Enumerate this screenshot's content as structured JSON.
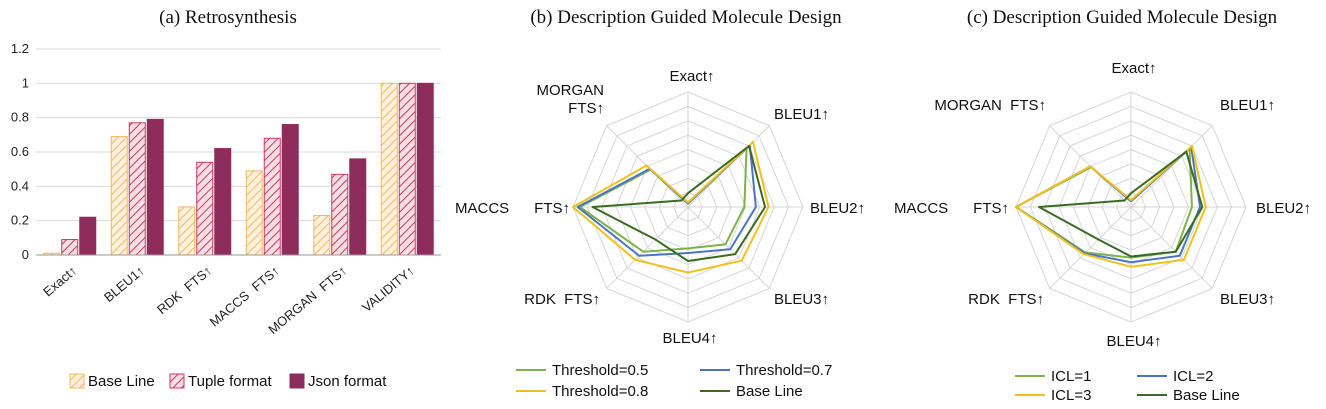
{
  "chart_data": [
    {
      "type": "bar",
      "title": "(a) Retrosynthesis",
      "categories": [
        "Exact↑",
        "BLEU1↑",
        "RDK FTS↑",
        "MACCS FTS↑",
        "MORGAN FTS↑",
        "VALIDITY↑"
      ],
      "ylim": [
        0,
        1.2
      ],
      "yticks": [
        "0",
        "0.2",
        "0.4",
        "0.6",
        "0.8",
        "1",
        "1.2"
      ],
      "legend_position": "bottom",
      "series": [
        {
          "name": "Base Line",
          "values": [
            0.01,
            0.69,
            0.28,
            0.49,
            0.23,
            1.0
          ],
          "color": "#f4b860",
          "fill": "#fdf0dc",
          "pattern": "hatch"
        },
        {
          "name": "Tuple format",
          "values": [
            0.09,
            0.77,
            0.54,
            0.68,
            0.47,
            1.0
          ],
          "color": "#c8395e",
          "fill": "#f7dde4",
          "pattern": "hatch"
        },
        {
          "name": "Json format",
          "values": [
            0.22,
            0.79,
            0.62,
            0.76,
            0.56,
            1.0
          ],
          "color": "#8e2c5c",
          "fill": "#8e2c5c",
          "pattern": "solid"
        }
      ]
    },
    {
      "type": "radar",
      "title": "(b) Description Guided Molecule Design",
      "axes": [
        "Exact↑",
        "BLEU1↑",
        "BLEU2↑",
        "BLEU3↑",
        "BLEU4↑",
        "RDK FTS↑",
        "MACCS FTS↑",
        "MORGAN FTS↑"
      ],
      "axis_label_lines": [
        [
          "Exact↑"
        ],
        [
          "BLEU1↑"
        ],
        [
          "BLEU2↑"
        ],
        [
          "BLEU3↑"
        ],
        [
          "BLEU4↑"
        ],
        [
          "RDK  FTS↑"
        ],
        [
          "MACCS      FTS↑"
        ],
        [
          "MORGAN",
          "FTS↑"
        ]
      ],
      "rlim": [
        0,
        1
      ],
      "grid": true,
      "legend_position": "bottom",
      "series": [
        {
          "name": "Threshold=0.5",
          "color": "#7db34a",
          "values": [
            0.03,
            0.72,
            0.49,
            0.46,
            0.36,
            0.55,
            0.94,
            0.46
          ]
        },
        {
          "name": "Threshold=0.7",
          "color": "#4a75c4",
          "values": [
            0.03,
            0.76,
            0.59,
            0.52,
            0.4,
            0.6,
            0.96,
            0.47
          ]
        },
        {
          "name": "Threshold=0.8",
          "color": "#f2c01e",
          "values": [
            0.04,
            0.8,
            0.7,
            0.66,
            0.57,
            0.65,
            1.0,
            0.51
          ]
        },
        {
          "name": "Base Line",
          "color": "#3a6b24",
          "values": [
            0.12,
            0.75,
            0.67,
            0.58,
            0.47,
            0.4,
            0.83,
            0.08
          ]
        }
      ]
    },
    {
      "type": "radar",
      "title": "(c) Description Guided Molecule Design",
      "axes": [
        "Exact↑",
        "BLEU1↑",
        "BLEU2↑",
        "BLEU3↑",
        "BLEU4↑",
        "RDK FTS↑",
        "MACCS FTS↑",
        "MORGAN FTS↑"
      ],
      "axis_label_lines": [
        [
          "Exact↑"
        ],
        [
          "BLEU1↑"
        ],
        [
          "BLEU2↑"
        ],
        [
          "BLEU3↑"
        ],
        [
          "BLEU4↑"
        ],
        [
          "RDK  FTS↑"
        ],
        [
          "MACCS      FTS↑"
        ],
        [
          "MORGAN  FTS↑"
        ]
      ],
      "rlim": [
        0,
        1
      ],
      "grid": true,
      "legend_position": "bottom",
      "series": [
        {
          "name": "ICL=1",
          "color": "#7db34a",
          "values": [
            0.05,
            0.72,
            0.53,
            0.55,
            0.44,
            0.56,
            1.0,
            0.49
          ]
        },
        {
          "name": "ICL=2",
          "color": "#4a75c4",
          "values": [
            0.05,
            0.74,
            0.6,
            0.6,
            0.48,
            0.57,
            1.0,
            0.5
          ]
        },
        {
          "name": "ICL=3",
          "color": "#f2c01e",
          "values": [
            0.06,
            0.75,
            0.65,
            0.65,
            0.52,
            0.58,
            1.0,
            0.5
          ]
        },
        {
          "name": "Base Line",
          "color": "#3a6b24",
          "values": [
            0.12,
            0.68,
            0.62,
            0.55,
            0.43,
            0.4,
            0.8,
            0.08
          ]
        }
      ]
    }
  ]
}
